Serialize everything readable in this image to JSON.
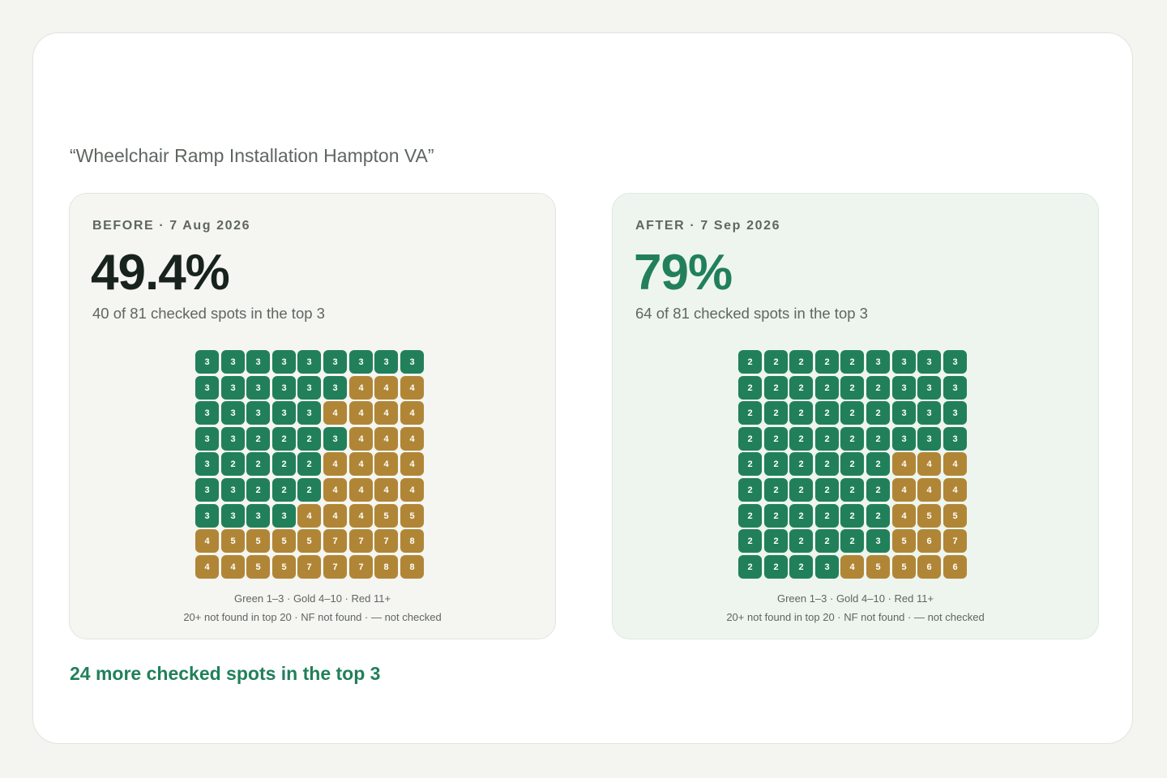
{
  "keyword": "“Wheelchair Ramp Installation Hampton VA”",
  "colors": {
    "green": "#21805a",
    "gold": "#b08636",
    "red": "#c0392b",
    "dark": "#17231c",
    "muted": "#5f6660"
  },
  "chart_data": [
    {
      "type": "heatmap",
      "title": "BEFORE · 7 Aug 2026",
      "headline": "49.4%",
      "subtitle": "40 of 81 checked spots in the top 3",
      "legend_line1": "Green 1–3 · Gold 4–10 · Red 11+",
      "legend_line2": "20+ not found in top 20 · NF not found · — not checked",
      "top3_percent": 49.4,
      "top3_count": 40,
      "checked_total": 81,
      "grid": [
        [
          3,
          3,
          3,
          3,
          3,
          3,
          3,
          3,
          3
        ],
        [
          3,
          3,
          3,
          3,
          3,
          3,
          4,
          4,
          4
        ],
        [
          3,
          3,
          3,
          3,
          3,
          4,
          4,
          4,
          4
        ],
        [
          3,
          3,
          2,
          2,
          2,
          3,
          4,
          4,
          4
        ],
        [
          3,
          2,
          2,
          2,
          2,
          4,
          4,
          4,
          4
        ],
        [
          3,
          3,
          2,
          2,
          2,
          4,
          4,
          4,
          4
        ],
        [
          3,
          3,
          3,
          3,
          4,
          4,
          4,
          5,
          5
        ],
        [
          4,
          5,
          5,
          5,
          5,
          7,
          7,
          7,
          8
        ],
        [
          4,
          4,
          5,
          5,
          7,
          7,
          7,
          8,
          8
        ]
      ]
    },
    {
      "type": "heatmap",
      "title": "AFTER · 7 Sep 2026",
      "headline": "79%",
      "subtitle": "64 of 81 checked spots in the top 3",
      "legend_line1": "Green 1–3 · Gold 4–10 · Red 11+",
      "legend_line2": "20+ not found in top 20 · NF not found · — not checked",
      "top3_percent": 79,
      "top3_count": 64,
      "checked_total": 81,
      "grid": [
        [
          2,
          2,
          2,
          2,
          2,
          3,
          3,
          3,
          3
        ],
        [
          2,
          2,
          2,
          2,
          2,
          2,
          3,
          3,
          3
        ],
        [
          2,
          2,
          2,
          2,
          2,
          2,
          3,
          3,
          3
        ],
        [
          2,
          2,
          2,
          2,
          2,
          2,
          3,
          3,
          3
        ],
        [
          2,
          2,
          2,
          2,
          2,
          2,
          4,
          4,
          4
        ],
        [
          2,
          2,
          2,
          2,
          2,
          2,
          4,
          4,
          4
        ],
        [
          2,
          2,
          2,
          2,
          2,
          2,
          4,
          5,
          5
        ],
        [
          2,
          2,
          2,
          2,
          2,
          3,
          5,
          6,
          7
        ],
        [
          2,
          2,
          2,
          3,
          4,
          5,
          5,
          6,
          6
        ]
      ]
    }
  ],
  "summary": "24 more checked spots in the top 3"
}
